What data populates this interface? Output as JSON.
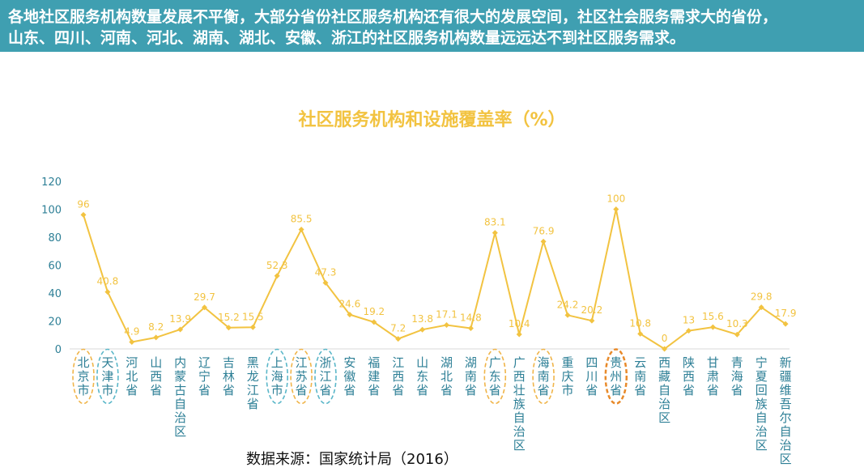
{
  "banner": {
    "line1": "各地社区服务机构数量发展不平衡，大部分省份社区服务机构还有很大的发展空间，社区社会服务需求大的省份，",
    "line2": "山东、四川、河南、河北、湖南、湖北、安徽、浙江的社区服务机构数量远远达不到社区服务需求。"
  },
  "source": "数据来源：国家统计局（2016）",
  "colors": {
    "banner": "#3f9fb1",
    "line": "#f2c341",
    "axis_text": "#2d7f96",
    "highlight_orange": "#f0b54a",
    "highlight_blue": "#5bb7c9",
    "highlight_dark_orange": "#e88a2a"
  },
  "chart_data": {
    "type": "line",
    "title": "社区服务机构和设施覆盖率（%）",
    "ylim": [
      0,
      120
    ],
    "yticks": [
      0,
      20,
      40,
      60,
      80,
      100,
      120
    ],
    "categories": [
      "北京市",
      "天津市",
      "河北省",
      "山西省",
      "内蒙古自治区",
      "辽宁省",
      "吉林省",
      "黑龙江省",
      "上海市",
      "江苏省",
      "浙江省",
      "安徽省",
      "福建省",
      "江西省",
      "山东省",
      "湖北省",
      "湖南省",
      "广东省",
      "广西壮族自治区",
      "海南省",
      "重庆市",
      "四川省",
      "贵州省",
      "云南省",
      "西藏自治区",
      "陕西省",
      "甘肃省",
      "青海省",
      "宁夏回族自治区",
      "新疆维吾尔自治区"
    ],
    "values": [
      96,
      40.8,
      4.9,
      8.2,
      13.9,
      29.7,
      15.2,
      15.5,
      52.3,
      85.5,
      47.3,
      24.6,
      19.2,
      7.2,
      13.8,
      17.1,
      14.8,
      83.1,
      10.4,
      76.9,
      24.2,
      20.2,
      100,
      10.8,
      0,
      13,
      15.6,
      10.3,
      29.8,
      17.9
    ],
    "data_labels": [
      "96",
      "40.8",
      "4.9",
      "8.2",
      "13.9",
      "29.7",
      "15.2",
      "15.5",
      "52.3",
      "85.5",
      "47.3",
      "24.6",
      "19.2",
      "7.2",
      "13.8",
      "17.1",
      "14.8",
      "83.1",
      "10.4",
      "76.9",
      "24.2",
      "20.2",
      "100",
      "10.8",
      "0",
      "13",
      "15.6",
      "10.3",
      "29.8",
      "17.9"
    ],
    "highlights": [
      {
        "category": "北京市",
        "style": "orange"
      },
      {
        "category": "天津市",
        "style": "blue"
      },
      {
        "category": "上海市",
        "style": "blue"
      },
      {
        "category": "江苏省",
        "style": "orange"
      },
      {
        "category": "浙江省",
        "style": "blue"
      },
      {
        "category": "广东省",
        "style": "orange"
      },
      {
        "category": "海南省",
        "style": "orange"
      },
      {
        "category": "贵州省",
        "style": "dark-orange"
      }
    ]
  }
}
